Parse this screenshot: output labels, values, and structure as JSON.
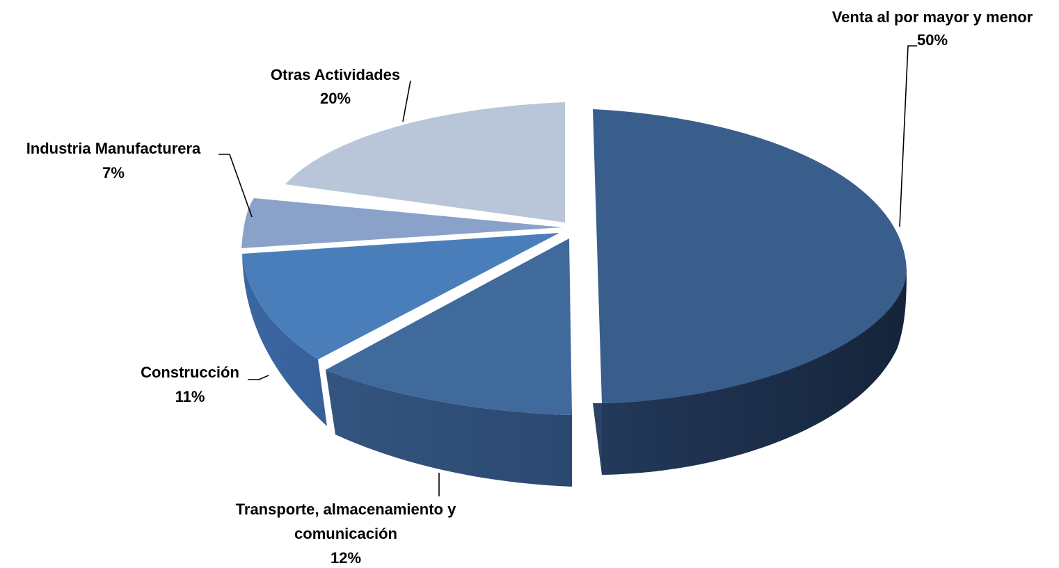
{
  "chart_data": {
    "type": "pie",
    "style": "3d-exploded",
    "title": "",
    "slices": [
      {
        "label": "Venta al por mayor y menor",
        "value": 50,
        "value_label": "50%",
        "color": "#3a5e8c",
        "exploded": true
      },
      {
        "label": "Transporte, almacenamiento y comunicación",
        "value": 12,
        "value_label": "12%",
        "color": "#40699c",
        "exploded": true
      },
      {
        "label": "Construcción",
        "value": 11,
        "value_label": "11%",
        "color": "#4a7ebb",
        "exploded": false
      },
      {
        "label": "Industria Manufacturera",
        "value": 7,
        "value_label": "7%",
        "color": "#8aa1c9",
        "exploded": false
      },
      {
        "label": "Otras Actividades",
        "value": 20,
        "value_label": "20%",
        "color": "#b9c6da",
        "exploded": false
      }
    ],
    "legend": "none",
    "data_labels": "outside-with-leader-lines"
  }
}
